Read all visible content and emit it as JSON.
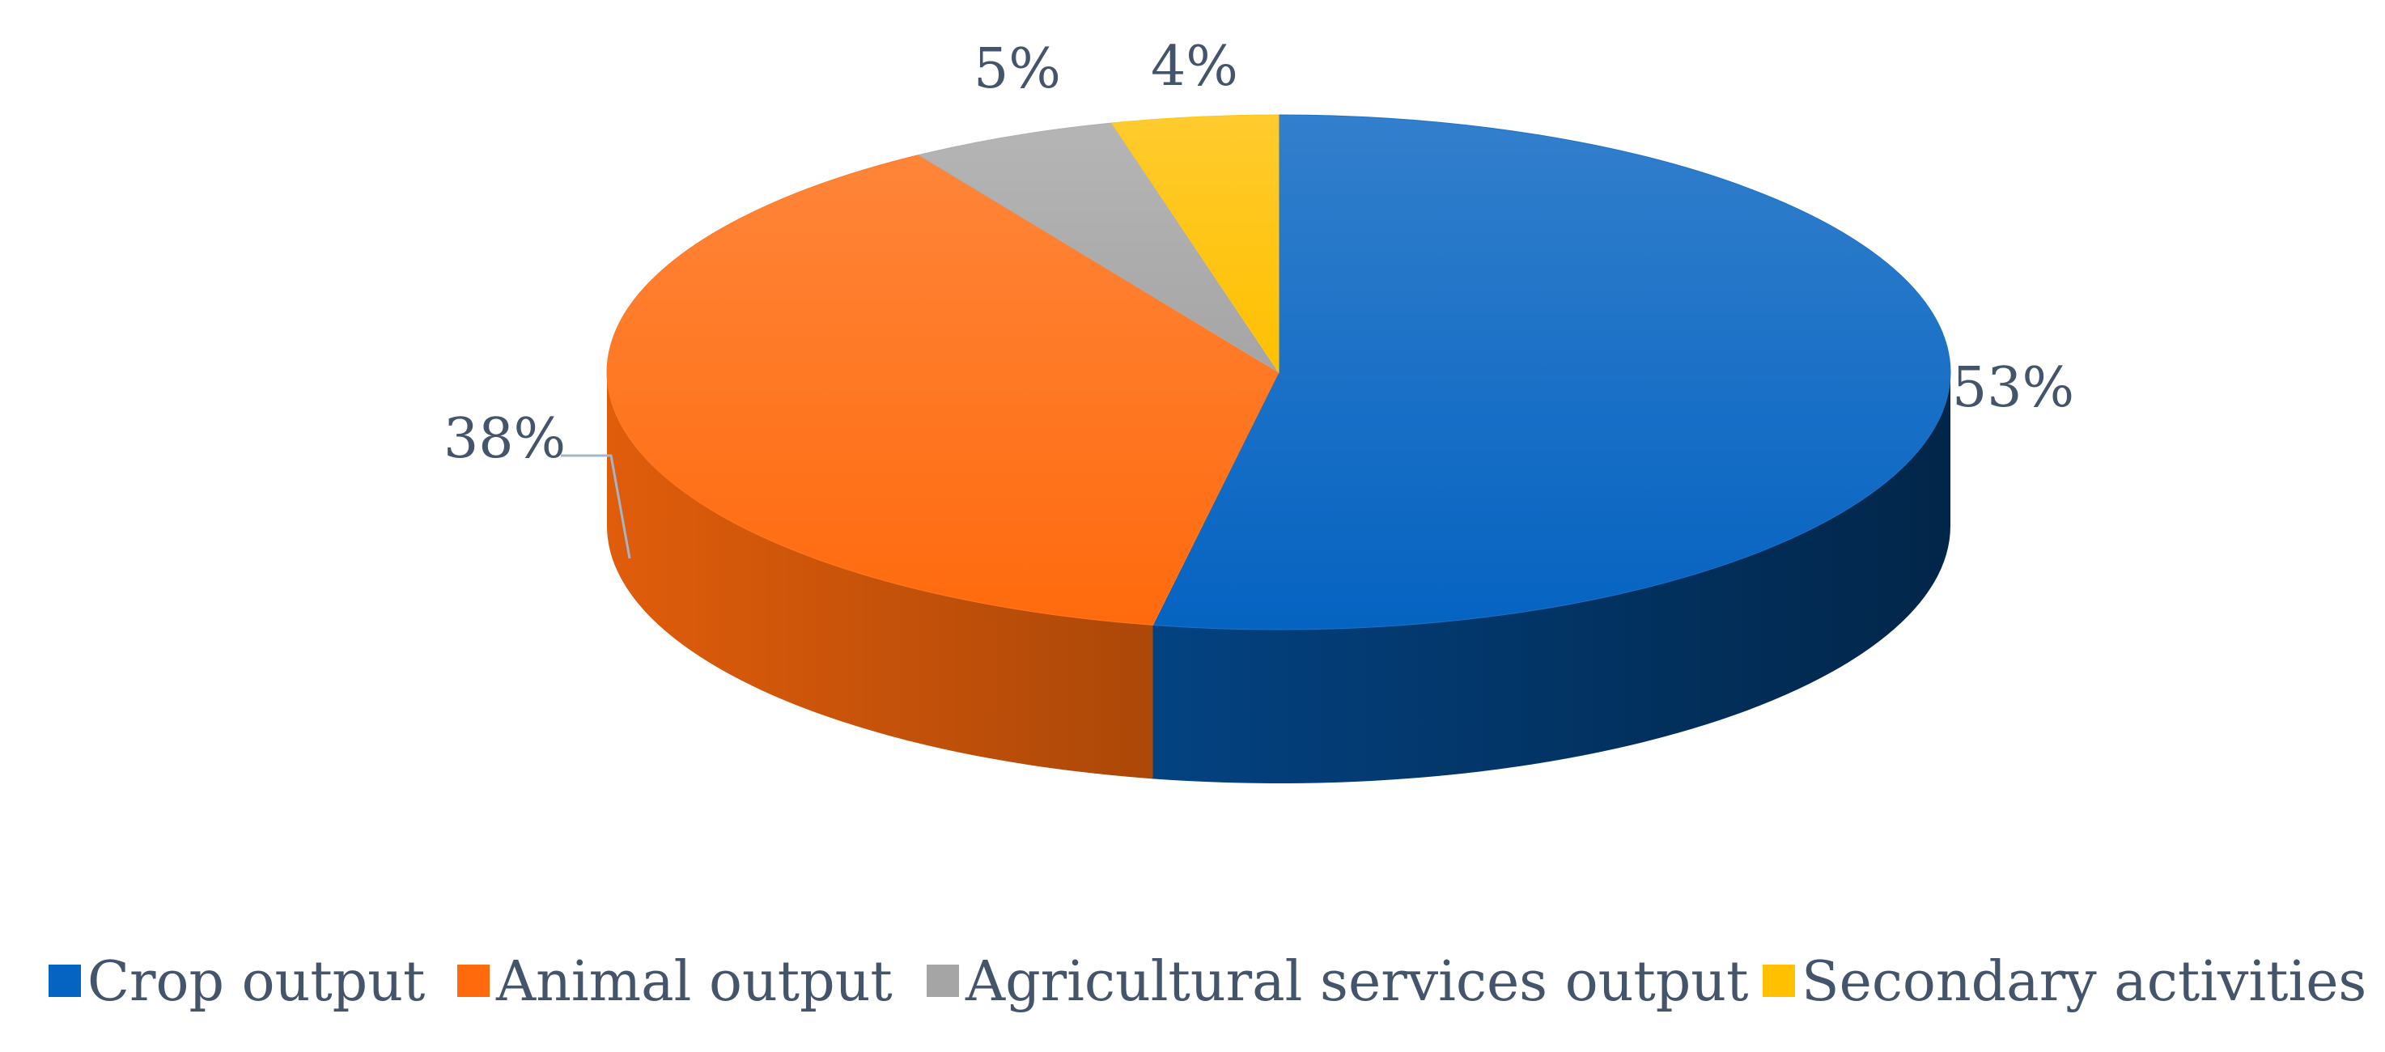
{
  "chart_data": {
    "type": "pie",
    "style": "3d",
    "title": "",
    "categories": [
      "Crop output",
      "Animal output",
      "Agricultural services output",
      "Secondary activities"
    ],
    "values": [
      53,
      38,
      5,
      4
    ],
    "labels": [
      "53%",
      "38%",
      "5%",
      "4%"
    ],
    "colors": [
      "#0563c1",
      "#ff6a0d",
      "#a5a5a5",
      "#ffc000"
    ],
    "legend_position": "bottom"
  }
}
